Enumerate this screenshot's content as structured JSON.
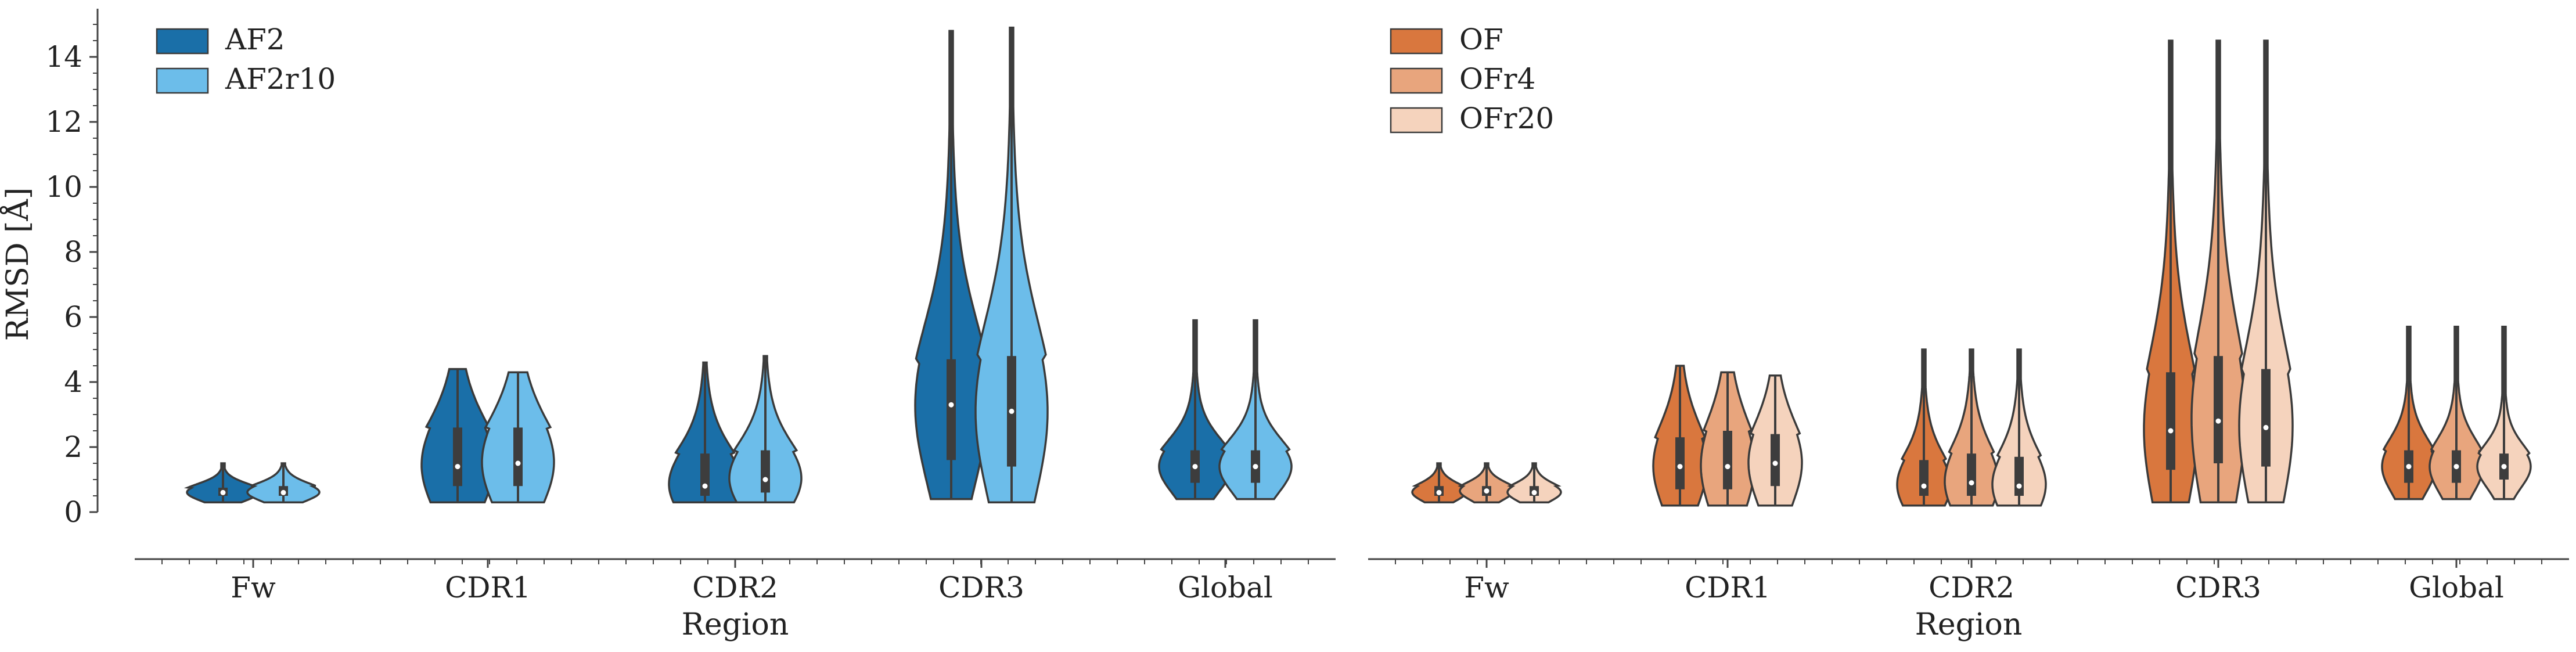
{
  "figure": {
    "ylabel": "RMSD [Å]",
    "xlabel": "Region"
  },
  "chart_data": [
    {
      "type": "violin",
      "panel": "left",
      "title": "",
      "xlabel": "Region",
      "ylabel": "RMSD [Å]",
      "categories": [
        "Fw",
        "CDR1",
        "CDR2",
        "CDR3",
        "Global"
      ],
      "yticks": [
        0,
        2,
        4,
        6,
        8,
        10,
        12,
        14
      ],
      "ylim": [
        -1.5,
        15.6
      ],
      "grid": false,
      "legend_position": "top-left",
      "series": [
        {
          "name": "AF2",
          "color": "#1a6fa8",
          "stats": [
            {
              "min": 0.3,
              "q1": 0.5,
              "median": 0.6,
              "q3": 0.75,
              "max": 1.5
            },
            {
              "min": 0.3,
              "q1": 0.8,
              "median": 1.4,
              "q3": 2.6,
              "max": 4.4
            },
            {
              "min": 0.3,
              "q1": 0.5,
              "median": 0.8,
              "q3": 1.8,
              "max": 4.6
            },
            {
              "min": 0.4,
              "q1": 1.6,
              "median": 3.3,
              "q3": 4.7,
              "max": 14.8
            },
            {
              "min": 0.4,
              "q1": 0.9,
              "median": 1.4,
              "q3": 1.9,
              "max": 5.9
            }
          ]
        },
        {
          "name": "AF2r10",
          "color": "#6cbdea",
          "stats": [
            {
              "min": 0.3,
              "q1": 0.5,
              "median": 0.6,
              "q3": 0.8,
              "max": 1.5
            },
            {
              "min": 0.3,
              "q1": 0.8,
              "median": 1.5,
              "q3": 2.6,
              "max": 4.3
            },
            {
              "min": 0.3,
              "q1": 0.6,
              "median": 1.0,
              "q3": 1.9,
              "max": 4.8
            },
            {
              "min": 0.3,
              "q1": 1.4,
              "median": 3.1,
              "q3": 4.8,
              "max": 14.9
            },
            {
              "min": 0.4,
              "q1": 0.9,
              "median": 1.4,
              "q3": 1.9,
              "max": 5.9
            }
          ]
        }
      ]
    },
    {
      "type": "violin",
      "panel": "right",
      "title": "",
      "xlabel": "Region",
      "ylabel": "",
      "categories": [
        "Fw",
        "CDR1",
        "CDR2",
        "CDR3",
        "Global"
      ],
      "ylim": [
        -1.5,
        15.6
      ],
      "grid": false,
      "legend_position": "top-left",
      "series": [
        {
          "name": "OF",
          "color": "#d9773e",
          "stats": [
            {
              "min": 0.3,
              "q1": 0.5,
              "median": 0.6,
              "q3": 0.8,
              "max": 1.5
            },
            {
              "min": 0.2,
              "q1": 0.7,
              "median": 1.4,
              "q3": 2.3,
              "max": 4.5
            },
            {
              "min": 0.2,
              "q1": 0.5,
              "median": 0.8,
              "q3": 1.6,
              "max": 5.0
            },
            {
              "min": 0.3,
              "q1": 1.3,
              "median": 2.5,
              "q3": 4.3,
              "max": 14.5
            },
            {
              "min": 0.4,
              "q1": 0.9,
              "median": 1.4,
              "q3": 1.9,
              "max": 5.7
            }
          ]
        },
        {
          "name": "OFr4",
          "color": "#e8a57d",
          "stats": [
            {
              "min": 0.3,
              "q1": 0.5,
              "median": 0.65,
              "q3": 0.8,
              "max": 1.5
            },
            {
              "min": 0.2,
              "q1": 0.7,
              "median": 1.4,
              "q3": 2.5,
              "max": 4.3
            },
            {
              "min": 0.2,
              "q1": 0.5,
              "median": 0.9,
              "q3": 1.8,
              "max": 5.0
            },
            {
              "min": 0.3,
              "q1": 1.5,
              "median": 2.8,
              "q3": 4.8,
              "max": 14.5
            },
            {
              "min": 0.4,
              "q1": 0.9,
              "median": 1.4,
              "q3": 1.9,
              "max": 5.7
            }
          ]
        },
        {
          "name": "OFr20",
          "color": "#f5d3bd",
          "stats": [
            {
              "min": 0.3,
              "q1": 0.5,
              "median": 0.6,
              "q3": 0.8,
              "max": 1.5
            },
            {
              "min": 0.2,
              "q1": 0.8,
              "median": 1.5,
              "q3": 2.4,
              "max": 4.2
            },
            {
              "min": 0.2,
              "q1": 0.5,
              "median": 0.8,
              "q3": 1.7,
              "max": 5.0
            },
            {
              "min": 0.3,
              "q1": 1.4,
              "median": 2.6,
              "q3": 4.4,
              "max": 14.5
            },
            {
              "min": 0.4,
              "q1": 1.0,
              "median": 1.4,
              "q3": 1.8,
              "max": 5.7
            }
          ]
        }
      ]
    }
  ]
}
